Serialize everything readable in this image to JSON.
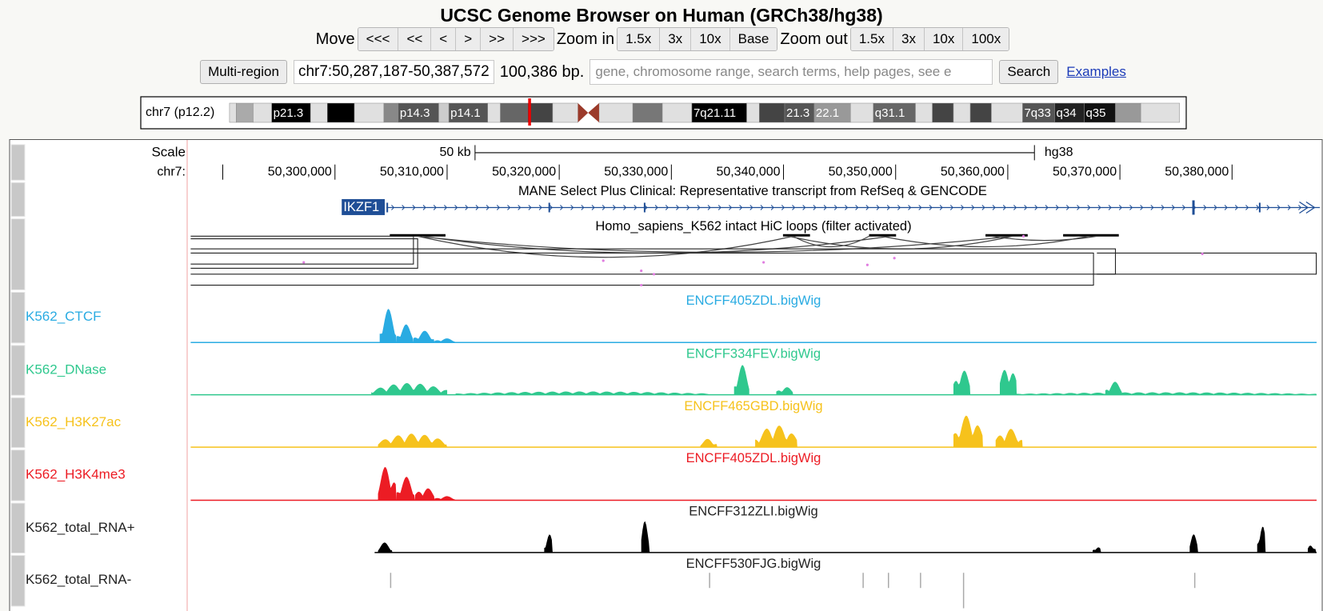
{
  "header": {
    "title": "UCSC Genome Browser on Human (GRCh38/hg38)"
  },
  "navigation": {
    "move_label": "Move",
    "move_buttons": [
      "<<<",
      "<<",
      "<",
      ">",
      ">>",
      ">>>"
    ],
    "zoom_in_label": "Zoom in",
    "zoom_in_buttons": [
      "1.5x",
      "3x",
      "10x",
      "Base"
    ],
    "zoom_out_label": "Zoom out",
    "zoom_out_buttons": [
      "1.5x",
      "3x",
      "10x",
      "100x"
    ]
  },
  "position_bar": {
    "multi_region_button": "Multi-region",
    "position": "chr7:50,287,187-50,387,572",
    "size": "100,386 bp.",
    "search_placeholder": "gene, chromosome range, search terms, help pages, see e",
    "search_button": "Search",
    "examples_link": "Examples"
  },
  "ideogram": {
    "label": "chr7 (p12.2)",
    "bands": [
      "p21.3",
      "p14.3",
      "p14.1",
      "7q21.11",
      "21.3",
      "22.1",
      "q31.1",
      "7q33",
      "q34",
      "q35"
    ]
  },
  "ruler": {
    "scale_label": "Scale",
    "bar_label": "50 kb",
    "assembly": "hg38",
    "chrom_label": "chr7:",
    "ticks": [
      "50,300,000",
      "50,310,000",
      "50,320,000",
      "50,330,000",
      "50,340,000",
      "50,350,000",
      "50,360,000",
      "50,370,000",
      "50,380,000"
    ]
  },
  "gene_track": {
    "title": "MANE Select Plus Clinical: Representative transcript from RefSeq & GENCODE",
    "gene": "IKZF1"
  },
  "hic_track": {
    "title": "Homo_sapiens_K562 intact HiC loops (filter activated)"
  },
  "signal_tracks": [
    {
      "name": "K562_CTCF",
      "file": "ENCFF405ZDL.bigWig",
      "color": "#29abe2"
    },
    {
      "name": "K562_DNase",
      "file": "ENCFF334FEV.bigWig",
      "color": "#2fc88e"
    },
    {
      "name": "K562_H3K27ac",
      "file": "ENCFF465GBD.bigWig",
      "color": "#f6c21c"
    },
    {
      "name": "K562_H3K4me3",
      "file": "ENCFF405ZDL.bigWig",
      "color": "#ec1c24"
    },
    {
      "name": "K562_total_RNA+",
      "file": "ENCFF312ZLI.bigWig",
      "color": "#000000"
    },
    {
      "name": "K562_total_RNA-",
      "file": "ENCFF530FJG.bigWig",
      "color": "#000000"
    }
  ]
}
